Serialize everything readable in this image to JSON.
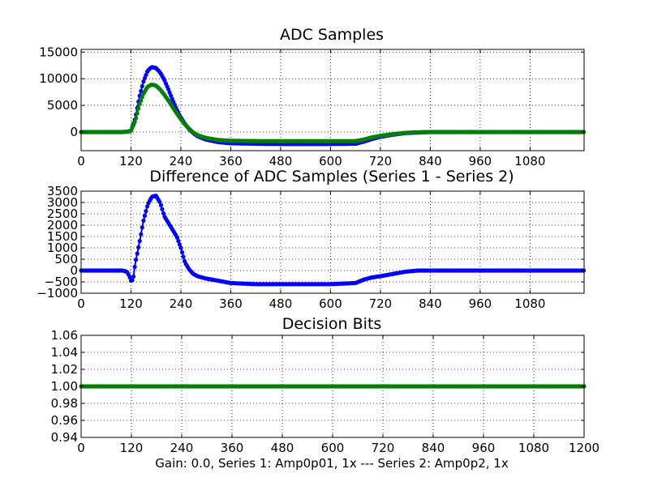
{
  "figure": {
    "xlabel": "Gain: 0.0, Series 1: Amp0p01, 1x --- Series 2: Amp0p2, 1x"
  },
  "chart_data": [
    {
      "id": "adc",
      "type": "scatter",
      "title": "ADC Samples",
      "xlim": [
        0,
        1210
      ],
      "ylim": [
        -3500,
        15500
      ],
      "xticks": [
        0,
        120,
        240,
        360,
        480,
        600,
        720,
        840,
        960,
        1080
      ],
      "yticks": [
        0,
        5000,
        10000,
        15000
      ],
      "grid": true,
      "series": [
        {
          "name": "Series 1",
          "color": "#0000ff",
          "points": [
            [
              0,
              0
            ],
            [
              100,
              0
            ],
            [
              115,
              100
            ],
            [
              120,
              300
            ],
            [
              130,
              2500
            ],
            [
              140,
              6500
            ],
            [
              150,
              9500
            ],
            [
              160,
              11500
            ],
            [
              170,
              12200
            ],
            [
              180,
              12000
            ],
            [
              190,
              11200
            ],
            [
              200,
              9800
            ],
            [
              210,
              8000
            ],
            [
              220,
              6000
            ],
            [
              230,
              4200
            ],
            [
              240,
              2700
            ],
            [
              250,
              1500
            ],
            [
              260,
              500
            ],
            [
              270,
              -200
            ],
            [
              280,
              -800
            ],
            [
              300,
              -1400
            ],
            [
              330,
              -1900
            ],
            [
              360,
              -2100
            ],
            [
              420,
              -2200
            ],
            [
              480,
              -2250
            ],
            [
              540,
              -2250
            ],
            [
              600,
              -2250
            ],
            [
              660,
              -2200
            ],
            [
              680,
              -1800
            ],
            [
              700,
              -1300
            ],
            [
              720,
              -900
            ],
            [
              750,
              -500
            ],
            [
              780,
              -200
            ],
            [
              810,
              -100
            ],
            [
              840,
              0
            ],
            [
              900,
              0
            ],
            [
              1000,
              0
            ],
            [
              1100,
              0
            ],
            [
              1210,
              0
            ]
          ]
        },
        {
          "name": "Series 2",
          "color": "#008000",
          "points": [
            [
              0,
              0
            ],
            [
              100,
              0
            ],
            [
              115,
              100
            ],
            [
              120,
              250
            ],
            [
              130,
              2000
            ],
            [
              140,
              5000
            ],
            [
              150,
              7200
            ],
            [
              160,
              8500
            ],
            [
              170,
              8900
            ],
            [
              180,
              8700
            ],
            [
              190,
              8000
            ],
            [
              200,
              7000
            ],
            [
              210,
              5900
            ],
            [
              220,
              4700
            ],
            [
              230,
              3500
            ],
            [
              240,
              2400
            ],
            [
              250,
              1400
            ],
            [
              260,
              600
            ],
            [
              270,
              -100
            ],
            [
              280,
              -600
            ],
            [
              300,
              -1100
            ],
            [
              330,
              -1500
            ],
            [
              360,
              -1650
            ],
            [
              420,
              -1700
            ],
            [
              480,
              -1700
            ],
            [
              540,
              -1700
            ],
            [
              600,
              -1700
            ],
            [
              660,
              -1700
            ],
            [
              680,
              -1400
            ],
            [
              700,
              -1000
            ],
            [
              720,
              -700
            ],
            [
              750,
              -400
            ],
            [
              780,
              -150
            ],
            [
              810,
              -50
            ],
            [
              840,
              0
            ],
            [
              900,
              0
            ],
            [
              1000,
              0
            ],
            [
              1100,
              0
            ],
            [
              1210,
              0
            ]
          ]
        }
      ]
    },
    {
      "id": "diff",
      "type": "scatter",
      "title": "Difference of ADC Samples (Series 1 - Series 2)",
      "xlim": [
        0,
        1210
      ],
      "ylim": [
        -1000,
        3500
      ],
      "xticks": [
        0,
        120,
        240,
        360,
        480,
        600,
        720,
        840,
        960,
        1080
      ],
      "yticks": [
        -1000,
        -500,
        0,
        500,
        1000,
        1500,
        2000,
        2500,
        3000,
        3500
      ],
      "grid": true,
      "series": [
        {
          "name": "Series 1 - Series 2",
          "color": "#0000ff",
          "points": [
            [
              0,
              0
            ],
            [
              100,
              0
            ],
            [
              110,
              -50
            ],
            [
              115,
              -200
            ],
            [
              120,
              -450
            ],
            [
              125,
              -400
            ],
            [
              130,
              300
            ],
            [
              140,
              1200
            ],
            [
              150,
              2200
            ],
            [
              160,
              2900
            ],
            [
              170,
              3250
            ],
            [
              180,
              3300
            ],
            [
              190,
              3000
            ],
            [
              200,
              2400
            ],
            [
              210,
              2100
            ],
            [
              220,
              1800
            ],
            [
              230,
              1500
            ],
            [
              240,
              1000
            ],
            [
              250,
              350
            ],
            [
              260,
              50
            ],
            [
              270,
              -150
            ],
            [
              280,
              -250
            ],
            [
              300,
              -350
            ],
            [
              330,
              -450
            ],
            [
              360,
              -550
            ],
            [
              420,
              -600
            ],
            [
              480,
              -600
            ],
            [
              540,
              -600
            ],
            [
              600,
              -600
            ],
            [
              660,
              -550
            ],
            [
              680,
              -400
            ],
            [
              700,
              -300
            ],
            [
              720,
              -250
            ],
            [
              750,
              -150
            ],
            [
              780,
              -50
            ],
            [
              810,
              0
            ],
            [
              840,
              0
            ],
            [
              900,
              0
            ],
            [
              1000,
              0
            ],
            [
              1100,
              0
            ],
            [
              1210,
              0
            ]
          ]
        }
      ]
    },
    {
      "id": "bits",
      "type": "scatter",
      "title": "Decision Bits",
      "xlim": [
        0,
        1200
      ],
      "ylim": [
        0.94,
        1.06
      ],
      "xticks": [
        0,
        120,
        240,
        360,
        480,
        600,
        720,
        840,
        960,
        1080,
        1200
      ],
      "yticks": [
        0.94,
        0.96,
        0.98,
        1.0,
        1.02,
        1.04,
        1.06
      ],
      "ytick_labels": [
        "0.94",
        "0.96",
        "0.98",
        "1.00",
        "1.02",
        "1.04",
        "1.06"
      ],
      "grid": true,
      "series": [
        {
          "name": "Decision Bits",
          "color": "#008000",
          "points": [
            [
              0,
              1.0
            ],
            [
              1200,
              1.0
            ]
          ]
        }
      ]
    }
  ]
}
